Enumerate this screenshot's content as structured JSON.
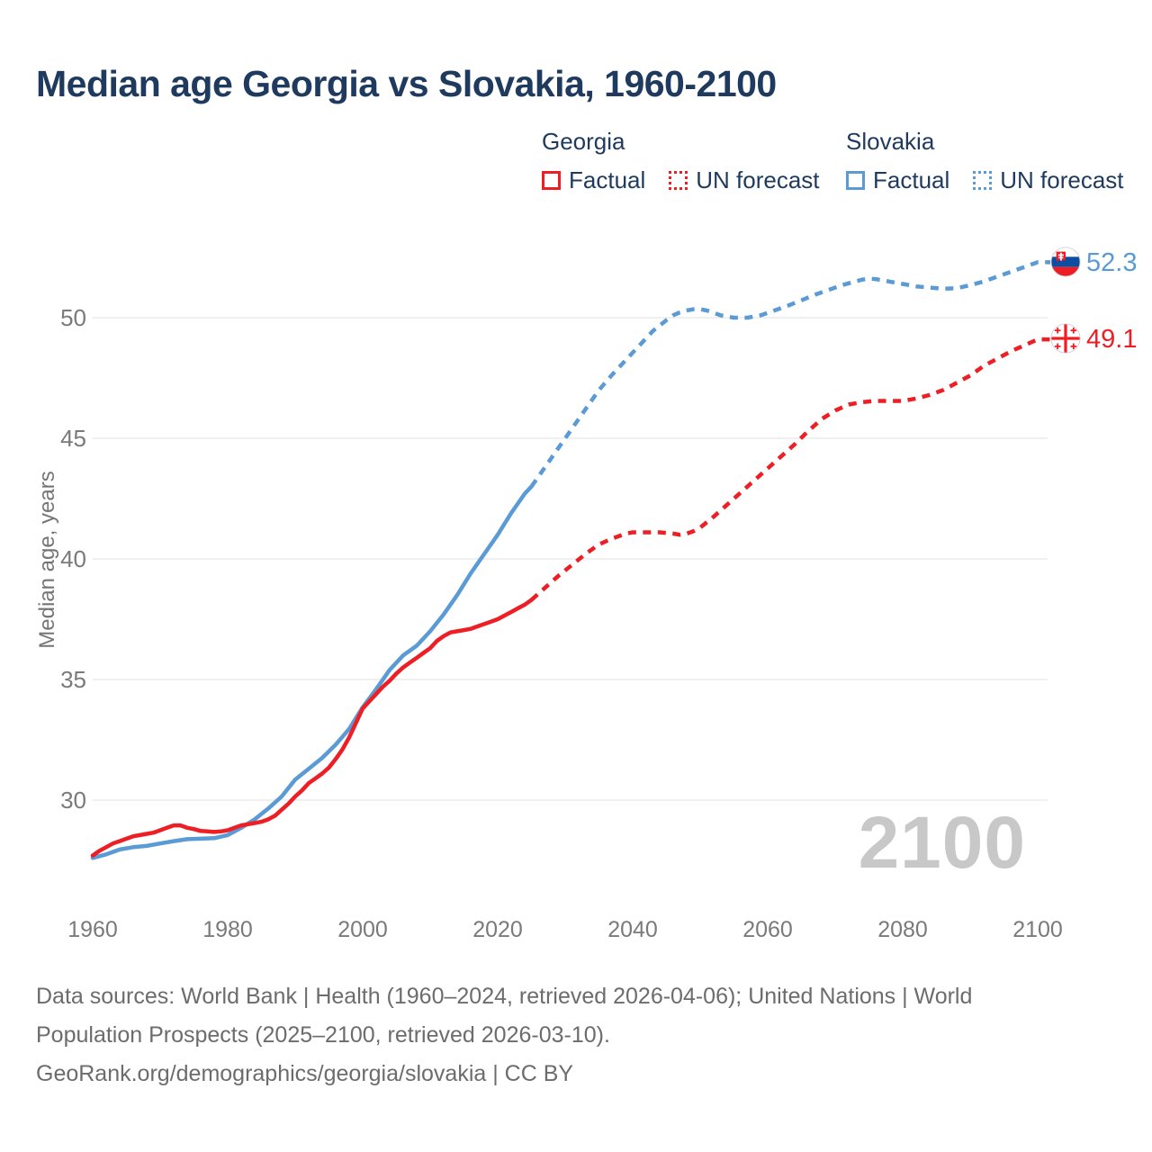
{
  "title": "Median age Georgia vs Slovakia, 1960-2100",
  "legend": {
    "groups": [
      {
        "label": "Georgia",
        "color": "#ed1f24",
        "items": [
          {
            "label": "Factual",
            "style": "solid"
          },
          {
            "label": "UN forecast",
            "style": "dashed"
          }
        ]
      },
      {
        "label": "Slovakia",
        "color": "#5b9bd5",
        "items": [
          {
            "label": "Factual",
            "style": "solid"
          },
          {
            "label": "UN forecast",
            "style": "dashed"
          }
        ]
      }
    ]
  },
  "end_labels": {
    "slovakia": "52.3",
    "georgia": "49.1"
  },
  "watermark": "2100",
  "footer": {
    "sources_line1": "Data sources: World Bank | Health (1960–2024, retrieved 2026-04-06); United Nations | World",
    "sources_line2": "Population Prospects (2025–2100, retrieved 2026-03-10).",
    "credit_line": "GeoRank.org/demographics/georgia/slovakia | CC BY"
  },
  "colors": {
    "title": "#1f3a5f",
    "axis_text": "#7a7a7a",
    "grid": "#e7e7e7",
    "watermark": "#c8c8c8",
    "footer_text": "#6c6c6c",
    "georgia": "#ed1f24",
    "slovakia": "#5b9bd5",
    "slovak_flag_blue": "#0b4ea2",
    "flag_red": "#ee1c25"
  },
  "chart_data": {
    "type": "line",
    "title": "Median age Georgia vs Slovakia, 1960-2100",
    "xlabel": "",
    "ylabel": "Median age, years",
    "xlim": [
      1960,
      2100
    ],
    "ylim": [
      26.5,
      53
    ],
    "x_ticks": [
      1960,
      1980,
      2000,
      2020,
      2040,
      2060,
      2080,
      2100
    ],
    "y_ticks": [
      30,
      35,
      40,
      45,
      50
    ],
    "grid": "horizontal",
    "legend_position": "top",
    "end_values": {
      "Slovakia": 52.3,
      "Georgia": 49.1
    },
    "series": [
      {
        "name": "Slovakia — Factual",
        "country": "Slovakia",
        "segment": "factual",
        "color": "#5b9bd5",
        "dash": "solid",
        "points": [
          [
            1960,
            27.6
          ],
          [
            1962,
            27.75
          ],
          [
            1964,
            27.95
          ],
          [
            1966,
            28.05
          ],
          [
            1968,
            28.1
          ],
          [
            1970,
            28.2
          ],
          [
            1972,
            28.3
          ],
          [
            1974,
            28.38
          ],
          [
            1976,
            28.4
          ],
          [
            1978,
            28.42
          ],
          [
            1980,
            28.55
          ],
          [
            1982,
            28.85
          ],
          [
            1984,
            29.2
          ],
          [
            1986,
            29.65
          ],
          [
            1988,
            30.15
          ],
          [
            1990,
            30.85
          ],
          [
            1992,
            31.3
          ],
          [
            1994,
            31.75
          ],
          [
            1996,
            32.3
          ],
          [
            1998,
            32.95
          ],
          [
            2000,
            33.85
          ],
          [
            2002,
            34.6
          ],
          [
            2004,
            35.4
          ],
          [
            2006,
            36.0
          ],
          [
            2008,
            36.4
          ],
          [
            2010,
            37.0
          ],
          [
            2012,
            37.7
          ],
          [
            2014,
            38.5
          ],
          [
            2016,
            39.4
          ],
          [
            2018,
            40.2
          ],
          [
            2020,
            41.0
          ],
          [
            2022,
            41.9
          ],
          [
            2024,
            42.7
          ],
          [
            2025,
            43.0
          ]
        ]
      },
      {
        "name": "Slovakia — UN forecast",
        "country": "Slovakia",
        "segment": "forecast",
        "color": "#5b9bd5",
        "dash": "dashed",
        "points": [
          [
            2025,
            43.0
          ],
          [
            2027,
            43.8
          ],
          [
            2029,
            44.6
          ],
          [
            2031,
            45.4
          ],
          [
            2033,
            46.2
          ],
          [
            2035,
            47.0
          ],
          [
            2037,
            47.65
          ],
          [
            2039,
            48.25
          ],
          [
            2041,
            48.85
          ],
          [
            2043,
            49.45
          ],
          [
            2045,
            49.9
          ],
          [
            2046,
            50.1
          ],
          [
            2047,
            50.22
          ],
          [
            2048,
            50.3
          ],
          [
            2049,
            50.35
          ],
          [
            2050,
            50.35
          ],
          [
            2051,
            50.3
          ],
          [
            2052,
            50.2
          ],
          [
            2053,
            50.1
          ],
          [
            2055,
            50.0
          ],
          [
            2057,
            50.0
          ],
          [
            2059,
            50.1
          ],
          [
            2061,
            50.3
          ],
          [
            2063,
            50.5
          ],
          [
            2065,
            50.72
          ],
          [
            2067,
            50.95
          ],
          [
            2069,
            51.15
          ],
          [
            2071,
            51.35
          ],
          [
            2073,
            51.5
          ],
          [
            2074,
            51.58
          ],
          [
            2075,
            51.62
          ],
          [
            2076,
            51.6
          ],
          [
            2078,
            51.5
          ],
          [
            2080,
            51.4
          ],
          [
            2082,
            51.3
          ],
          [
            2084,
            51.25
          ],
          [
            2086,
            51.2
          ],
          [
            2088,
            51.22
          ],
          [
            2090,
            51.35
          ],
          [
            2092,
            51.5
          ],
          [
            2094,
            51.7
          ],
          [
            2096,
            51.9
          ],
          [
            2098,
            52.1
          ],
          [
            2100,
            52.3
          ]
        ]
      },
      {
        "name": "Georgia — Factual",
        "country": "Georgia",
        "segment": "factual",
        "color": "#ed1f24",
        "dash": "solid",
        "points": [
          [
            1960,
            27.7
          ],
          [
            1961,
            27.9
          ],
          [
            1962,
            28.05
          ],
          [
            1963,
            28.2
          ],
          [
            1964,
            28.3
          ],
          [
            1965,
            28.4
          ],
          [
            1966,
            28.5
          ],
          [
            1967,
            28.55
          ],
          [
            1968,
            28.6
          ],
          [
            1969,
            28.65
          ],
          [
            1970,
            28.75
          ],
          [
            1971,
            28.85
          ],
          [
            1972,
            28.95
          ],
          [
            1973,
            28.95
          ],
          [
            1974,
            28.85
          ],
          [
            1975,
            28.8
          ],
          [
            1976,
            28.72
          ],
          [
            1977,
            28.7
          ],
          [
            1978,
            28.68
          ],
          [
            1979,
            28.7
          ],
          [
            1980,
            28.75
          ],
          [
            1981,
            28.85
          ],
          [
            1982,
            28.95
          ],
          [
            1983,
            29.0
          ],
          [
            1984,
            29.05
          ],
          [
            1985,
            29.1
          ],
          [
            1986,
            29.2
          ],
          [
            1987,
            29.35
          ],
          [
            1988,
            29.6
          ],
          [
            1989,
            29.85
          ],
          [
            1990,
            30.15
          ],
          [
            1991,
            30.4
          ],
          [
            1992,
            30.7
          ],
          [
            1993,
            30.9
          ],
          [
            1994,
            31.1
          ],
          [
            1995,
            31.35
          ],
          [
            1996,
            31.7
          ],
          [
            1997,
            32.1
          ],
          [
            1998,
            32.6
          ],
          [
            1999,
            33.2
          ],
          [
            2000,
            33.8
          ],
          [
            2001,
            34.1
          ],
          [
            2002,
            34.4
          ],
          [
            2003,
            34.7
          ],
          [
            2004,
            34.95
          ],
          [
            2005,
            35.25
          ],
          [
            2006,
            35.5
          ],
          [
            2007,
            35.7
          ],
          [
            2008,
            35.9
          ],
          [
            2009,
            36.1
          ],
          [
            2010,
            36.3
          ],
          [
            2011,
            36.6
          ],
          [
            2012,
            36.8
          ],
          [
            2013,
            36.95
          ],
          [
            2014,
            37.0
          ],
          [
            2015,
            37.05
          ],
          [
            2016,
            37.1
          ],
          [
            2017,
            37.2
          ],
          [
            2018,
            37.3
          ],
          [
            2019,
            37.4
          ],
          [
            2020,
            37.5
          ],
          [
            2021,
            37.65
          ],
          [
            2022,
            37.8
          ],
          [
            2023,
            37.95
          ],
          [
            2024,
            38.1
          ],
          [
            2025,
            38.3
          ]
        ]
      },
      {
        "name": "Georgia — UN forecast",
        "country": "Georgia",
        "segment": "forecast",
        "color": "#ed1f24",
        "dash": "dashed",
        "points": [
          [
            2025,
            38.3
          ],
          [
            2027,
            38.8
          ],
          [
            2029,
            39.3
          ],
          [
            2031,
            39.75
          ],
          [
            2033,
            40.2
          ],
          [
            2035,
            40.6
          ],
          [
            2037,
            40.85
          ],
          [
            2039,
            41.05
          ],
          [
            2040,
            41.1
          ],
          [
            2042,
            41.1
          ],
          [
            2044,
            41.1
          ],
          [
            2046,
            41.05
          ],
          [
            2047,
            41.0
          ],
          [
            2048,
            41.05
          ],
          [
            2049,
            41.15
          ],
          [
            2050,
            41.3
          ],
          [
            2052,
            41.75
          ],
          [
            2054,
            42.25
          ],
          [
            2056,
            42.75
          ],
          [
            2058,
            43.25
          ],
          [
            2060,
            43.75
          ],
          [
            2062,
            44.25
          ],
          [
            2064,
            44.75
          ],
          [
            2066,
            45.3
          ],
          [
            2068,
            45.8
          ],
          [
            2070,
            46.15
          ],
          [
            2072,
            46.4
          ],
          [
            2074,
            46.5
          ],
          [
            2076,
            46.55
          ],
          [
            2078,
            46.55
          ],
          [
            2080,
            46.55
          ],
          [
            2082,
            46.65
          ],
          [
            2084,
            46.8
          ],
          [
            2086,
            47.0
          ],
          [
            2088,
            47.3
          ],
          [
            2090,
            47.6
          ],
          [
            2092,
            48.0
          ],
          [
            2094,
            48.3
          ],
          [
            2096,
            48.6
          ],
          [
            2098,
            48.85
          ],
          [
            2100,
            49.1
          ]
        ]
      }
    ]
  }
}
